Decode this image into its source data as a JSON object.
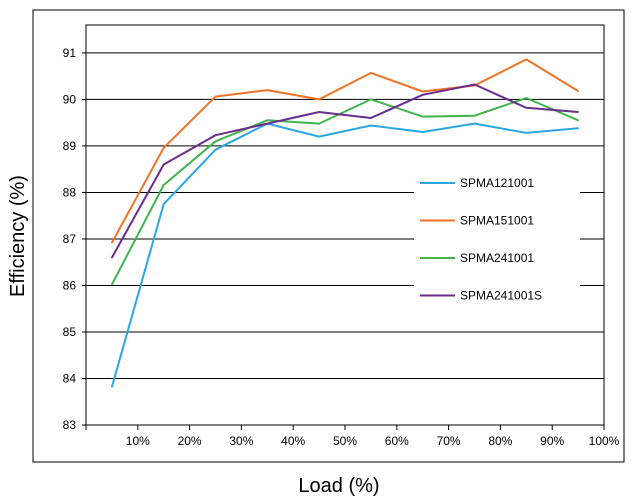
{
  "chart_data": {
    "type": "line",
    "title": "",
    "xlabel": "Load (%)",
    "ylabel": "Efficiency (%)",
    "x_tick_labels": [
      "10%",
      "20%",
      "30%",
      "40%",
      "50%",
      "60%",
      "70%",
      "80%",
      "90%",
      "100%"
    ],
    "x_ticks": [
      10,
      20,
      30,
      40,
      50,
      60,
      70,
      80,
      90,
      100
    ],
    "xlim": [
      0,
      100
    ],
    "y_ticks": [
      83,
      84,
      85,
      86,
      87,
      88,
      89,
      90,
      91
    ],
    "ylim": [
      83,
      91.6
    ],
    "grid": "horizontal",
    "legend_position": "right-center",
    "x": [
      5,
      15,
      25,
      35,
      45,
      55,
      65,
      75,
      85,
      95
    ],
    "series": [
      {
        "name": "SPMA121001",
        "color": "#2aa7df",
        "values": [
          83.82,
          87.75,
          88.92,
          89.48,
          89.2,
          89.44,
          89.3,
          89.48,
          89.28,
          89.38
        ]
      },
      {
        "name": "SPMA151001",
        "color": "#f07227",
        "values": [
          86.92,
          88.96,
          90.06,
          90.2,
          90.0,
          90.57,
          90.17,
          90.3,
          90.86,
          90.18
        ]
      },
      {
        "name": "SPMA241001",
        "color": "#3fb44a",
        "values": [
          86.02,
          88.16,
          89.1,
          89.55,
          89.48,
          90.0,
          89.63,
          89.65,
          90.03,
          89.55
        ]
      },
      {
        "name": "SPMA241001S",
        "color": "#6a2c8e",
        "values": [
          86.6,
          88.6,
          89.23,
          89.48,
          89.73,
          89.6,
          90.1,
          90.32,
          89.82,
          89.73
        ]
      }
    ]
  }
}
